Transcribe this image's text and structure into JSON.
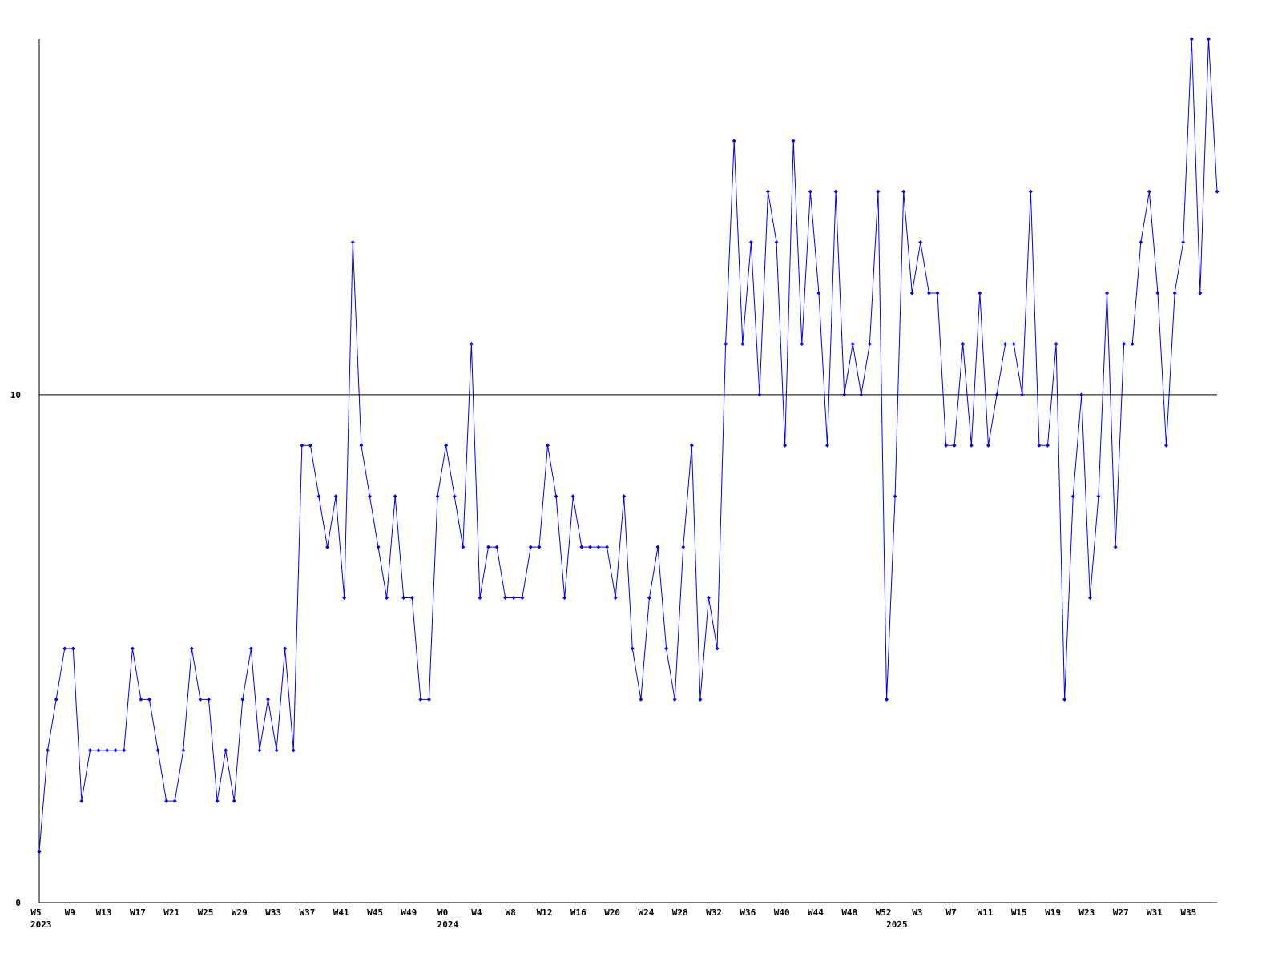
{
  "chart_data": {
    "type": "line",
    "color": "#0000ff",
    "grid": true,
    "grid_color": "#000000",
    "ylim": [
      0,
      17
    ],
    "yticks": [
      0,
      10
    ],
    "categories": [
      "W5",
      null,
      null,
      null,
      "W9",
      null,
      null,
      null,
      "W13",
      null,
      null,
      null,
      "W17",
      null,
      null,
      null,
      "W21",
      null,
      null,
      null,
      "W25",
      null,
      null,
      null,
      "W29",
      null,
      null,
      null,
      "W33",
      null,
      null,
      null,
      "W37",
      null,
      null,
      null,
      "W41",
      null,
      null,
      null,
      "W45",
      null,
      null,
      null,
      "W49",
      null,
      null,
      null,
      "W0",
      null,
      null,
      null,
      "W4",
      null,
      null,
      null,
      "W8",
      null,
      null,
      null,
      "W12",
      null,
      null,
      null,
      "W16",
      null,
      null,
      null,
      "W20",
      null,
      null,
      null,
      "W24",
      null,
      null,
      null,
      "W28",
      null,
      null,
      null,
      "W32",
      null,
      null,
      null,
      "W36",
      null,
      null,
      null,
      "W40",
      null,
      null,
      null,
      "W44",
      null,
      null,
      null,
      "W48",
      null,
      null,
      null,
      "W52",
      null,
      null,
      null,
      "W3",
      null,
      null,
      null,
      "W7",
      null,
      null,
      null,
      "W11",
      null,
      null,
      null,
      "W15",
      null,
      null,
      null,
      "W19",
      null,
      null,
      null,
      "W23",
      null,
      null,
      null,
      "W27",
      null,
      null,
      null,
      "W31",
      null,
      null,
      null,
      "W35",
      null,
      null,
      null
    ],
    "groups": [
      {
        "label": "2023",
        "start": 0
      },
      {
        "label": "2024",
        "start": 48
      },
      {
        "label": "2025",
        "start": 101
      }
    ],
    "values": [
      1,
      3,
      4,
      5,
      5,
      2,
      3,
      3,
      3,
      3,
      3,
      5,
      4,
      4,
      3,
      2,
      2,
      3,
      5,
      4,
      4,
      2,
      3,
      2,
      4,
      5,
      3,
      4,
      3,
      5,
      3,
      9,
      9,
      8,
      7,
      8,
      6,
      13,
      9,
      8,
      7,
      6,
      8,
      6,
      6,
      4,
      4,
      8,
      9,
      8,
      7,
      11,
      6,
      7,
      7,
      6,
      6,
      6,
      7,
      7,
      9,
      8,
      6,
      8,
      7,
      7,
      7,
      7,
      6,
      8,
      5,
      4,
      6,
      7,
      5,
      4,
      7,
      9,
      4,
      6,
      5,
      11,
      15,
      11,
      13,
      10,
      14,
      13,
      9,
      15,
      11,
      14,
      12,
      9,
      14,
      10,
      11,
      10,
      11,
      14,
      4,
      8,
      14,
      12,
      13,
      12,
      12,
      9,
      9,
      11,
      9,
      12,
      9,
      10,
      11,
      11,
      10,
      14,
      9,
      9,
      11,
      4,
      8,
      10,
      6,
      8,
      12,
      7,
      11,
      11,
      13,
      14,
      12,
      9,
      12,
      13,
      17,
      12,
      17,
      14
    ]
  }
}
